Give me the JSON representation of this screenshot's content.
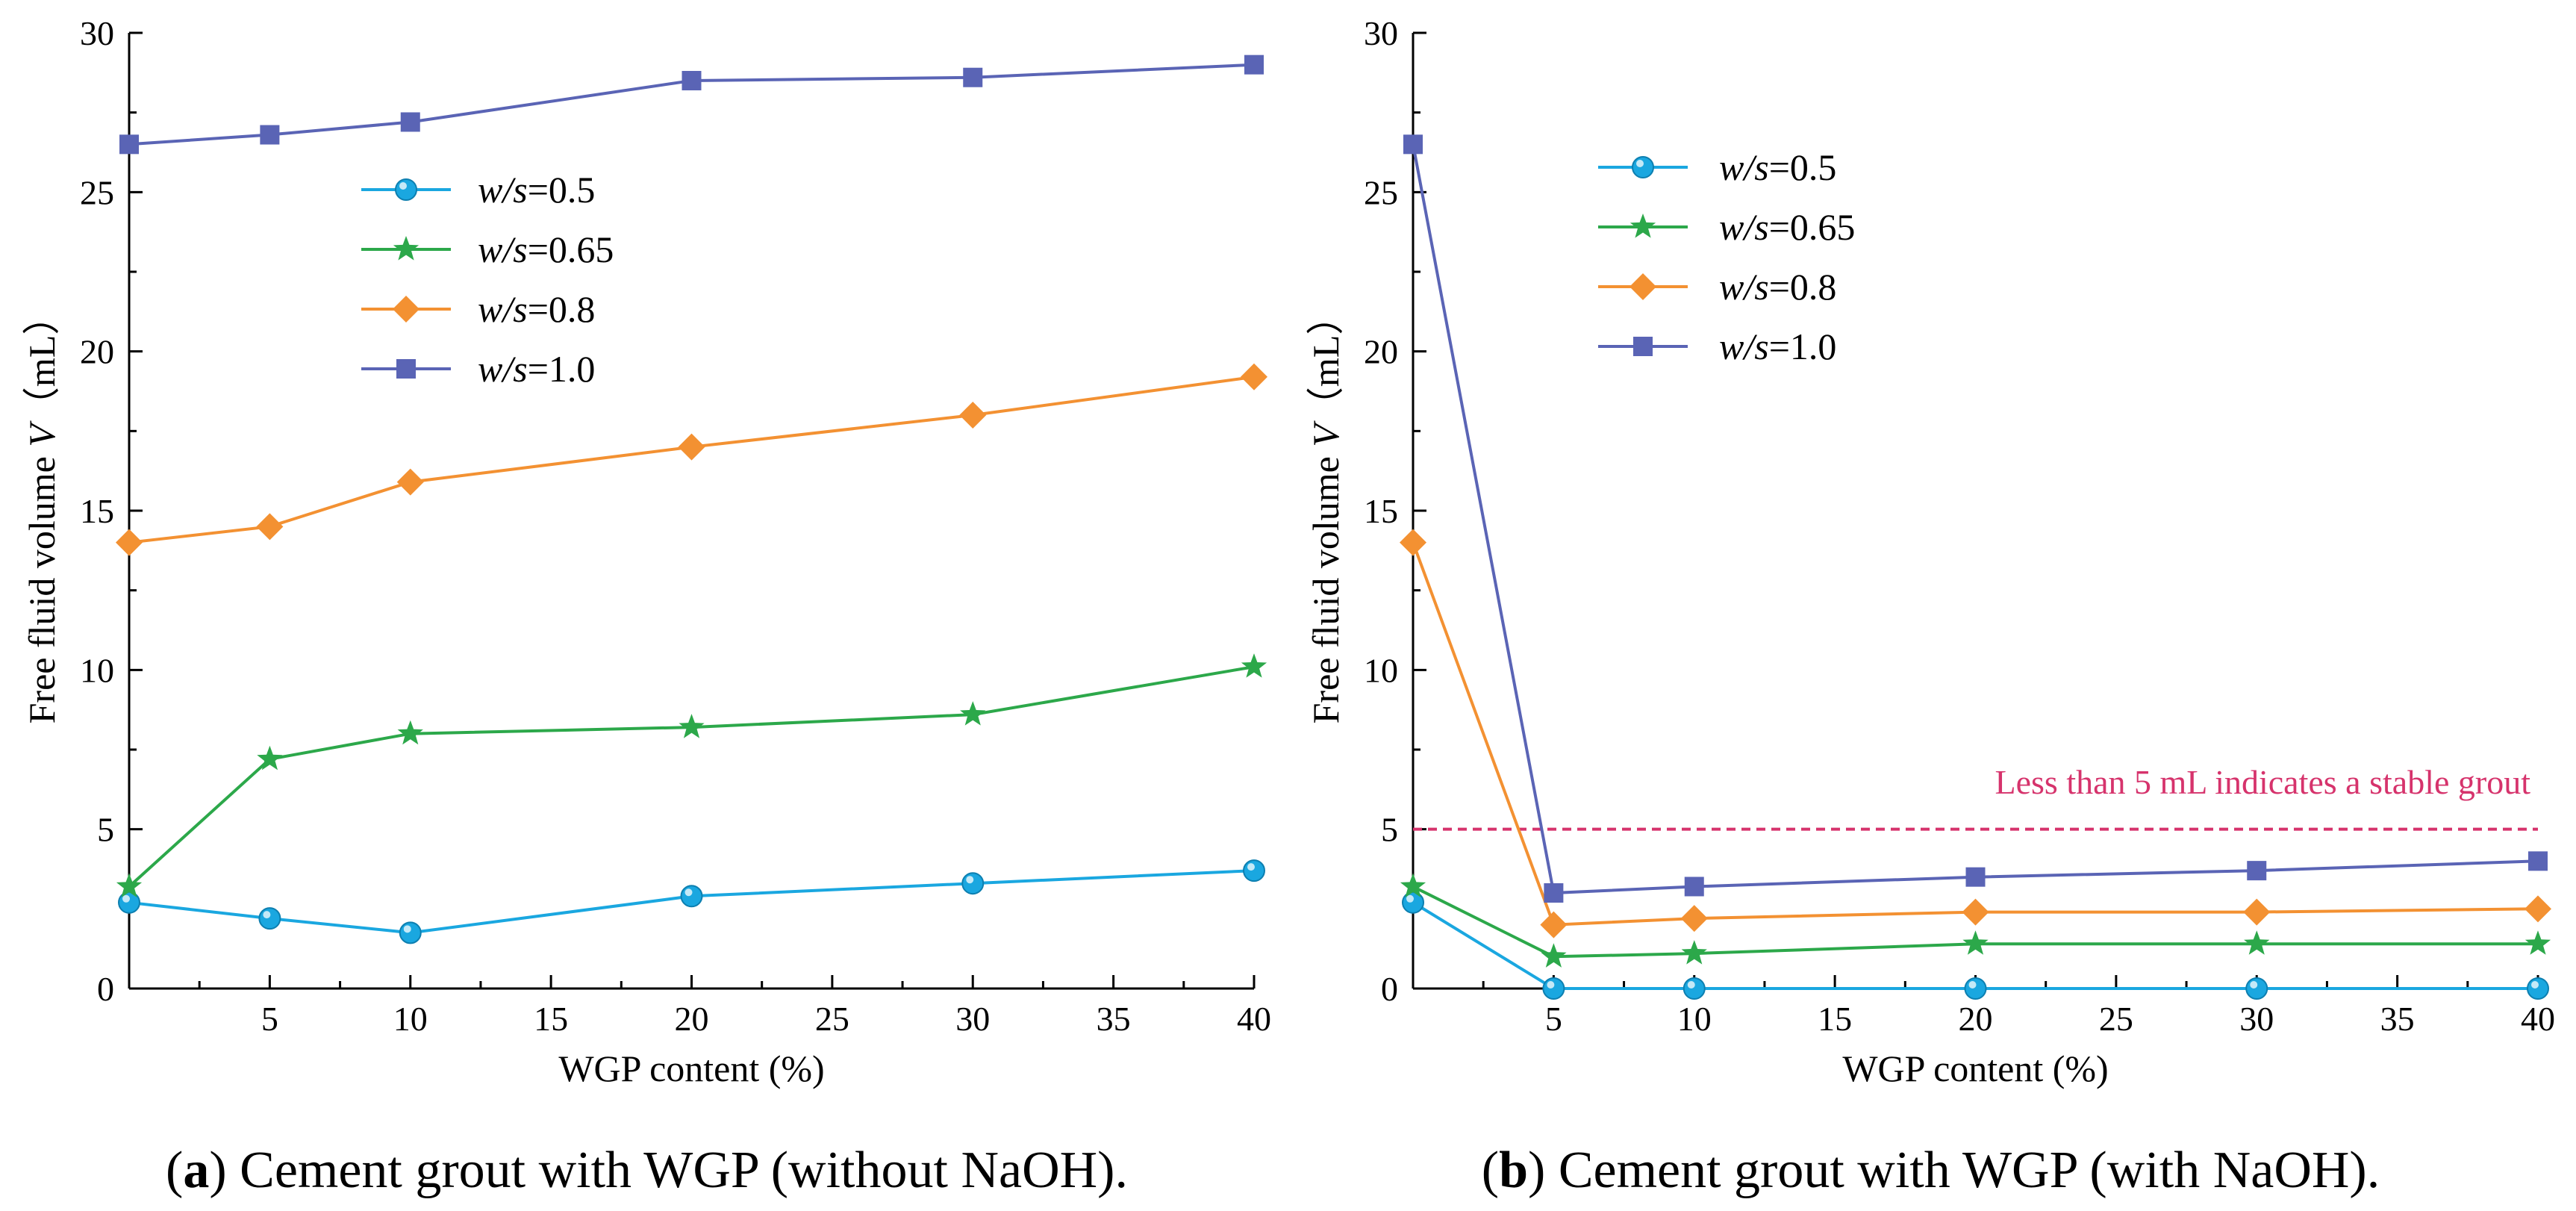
{
  "chart_data": [
    {
      "type": "line",
      "panel_label": "a",
      "caption": "Cement grout with WGP (without NaOH).",
      "xlabel": "WGP content (%)",
      "ylabel_prefix": "Free fluid volume ",
      "ylabel_var": "V",
      "ylabel_unit": "（mL）",
      "xlim": [
        0,
        40
      ],
      "ylim": [
        0,
        30
      ],
      "x_major_ticks": [
        5,
        10,
        15,
        20,
        25,
        30,
        35,
        40
      ],
      "x_minor_ticks": [
        2.5,
        7.5,
        12.5,
        17.5,
        22.5,
        27.5,
        32.5,
        37.5
      ],
      "y_major_ticks": [
        0,
        5,
        10,
        15,
        20,
        25,
        30
      ],
      "y_minor_ticks": [
        2.5,
        7.5,
        12.5,
        17.5,
        22.5,
        27.5
      ],
      "legend_position": "upper-left-center",
      "x": [
        0,
        5,
        10,
        20,
        30,
        40
      ],
      "series": [
        {
          "var": "w/s",
          "value": "=0.5",
          "color": "#1aa7e0",
          "marker": "circle",
          "values": [
            2.7,
            2.2,
            1.75,
            2.9,
            3.3,
            3.7
          ]
        },
        {
          "var": "w/s",
          "value": "=0.65",
          "color": "#2ca84a",
          "marker": "star",
          "values": [
            3.2,
            7.2,
            8.0,
            8.2,
            8.6,
            10.1
          ]
        },
        {
          "var": "w/s",
          "value": "=0.8",
          "color": "#f39132",
          "marker": "diamond",
          "values": [
            14.0,
            14.5,
            15.9,
            17.0,
            18.0,
            19.2
          ]
        },
        {
          "var": "w/s",
          "value": "=1.0",
          "color": "#5a64b5",
          "marker": "square",
          "values": [
            26.5,
            26.8,
            27.2,
            28.5,
            28.6,
            29.0
          ]
        }
      ]
    },
    {
      "type": "line",
      "panel_label": "b",
      "caption": "Cement grout with WGP (with NaOH).",
      "xlabel": "WGP content (%)",
      "ylabel_prefix": "Free fluid volume ",
      "ylabel_var": "V",
      "ylabel_unit": "（mL）",
      "xlim": [
        0,
        40
      ],
      "ylim": [
        0,
        30
      ],
      "x_major_ticks": [
        5,
        10,
        15,
        20,
        25,
        30,
        35,
        40
      ],
      "x_minor_ticks": [
        2.5,
        7.5,
        12.5,
        17.5,
        22.5,
        27.5,
        32.5,
        37.5
      ],
      "y_major_ticks": [
        0,
        5,
        10,
        15,
        20,
        25,
        30
      ],
      "y_minor_ticks": [
        2.5,
        7.5,
        12.5,
        17.5,
        22.5,
        27.5
      ],
      "legend_position": "upper-left-center",
      "reference_line": {
        "y": 5,
        "color": "#d6336c",
        "label": "Less than 5 mL indicates a stable grout"
      },
      "x": [
        0,
        5,
        10,
        20,
        30,
        40
      ],
      "series": [
        {
          "var": "w/s",
          "value": "=0.5",
          "color": "#1aa7e0",
          "marker": "circle",
          "values": [
            2.7,
            0,
            0,
            0,
            0,
            0
          ]
        },
        {
          "var": "w/s",
          "value": "=0.65",
          "color": "#2ca84a",
          "marker": "star",
          "values": [
            3.2,
            1.0,
            1.1,
            1.4,
            1.4,
            1.4
          ]
        },
        {
          "var": "w/s",
          "value": "=0.8",
          "color": "#f39132",
          "marker": "diamond",
          "values": [
            14.0,
            2.0,
            2.2,
            2.4,
            2.4,
            2.5
          ]
        },
        {
          "var": "w/s",
          "value": "=1.0",
          "color": "#5a64b5",
          "marker": "square",
          "values": [
            26.5,
            3.0,
            3.2,
            3.5,
            3.7,
            4.0
          ]
        }
      ]
    }
  ]
}
